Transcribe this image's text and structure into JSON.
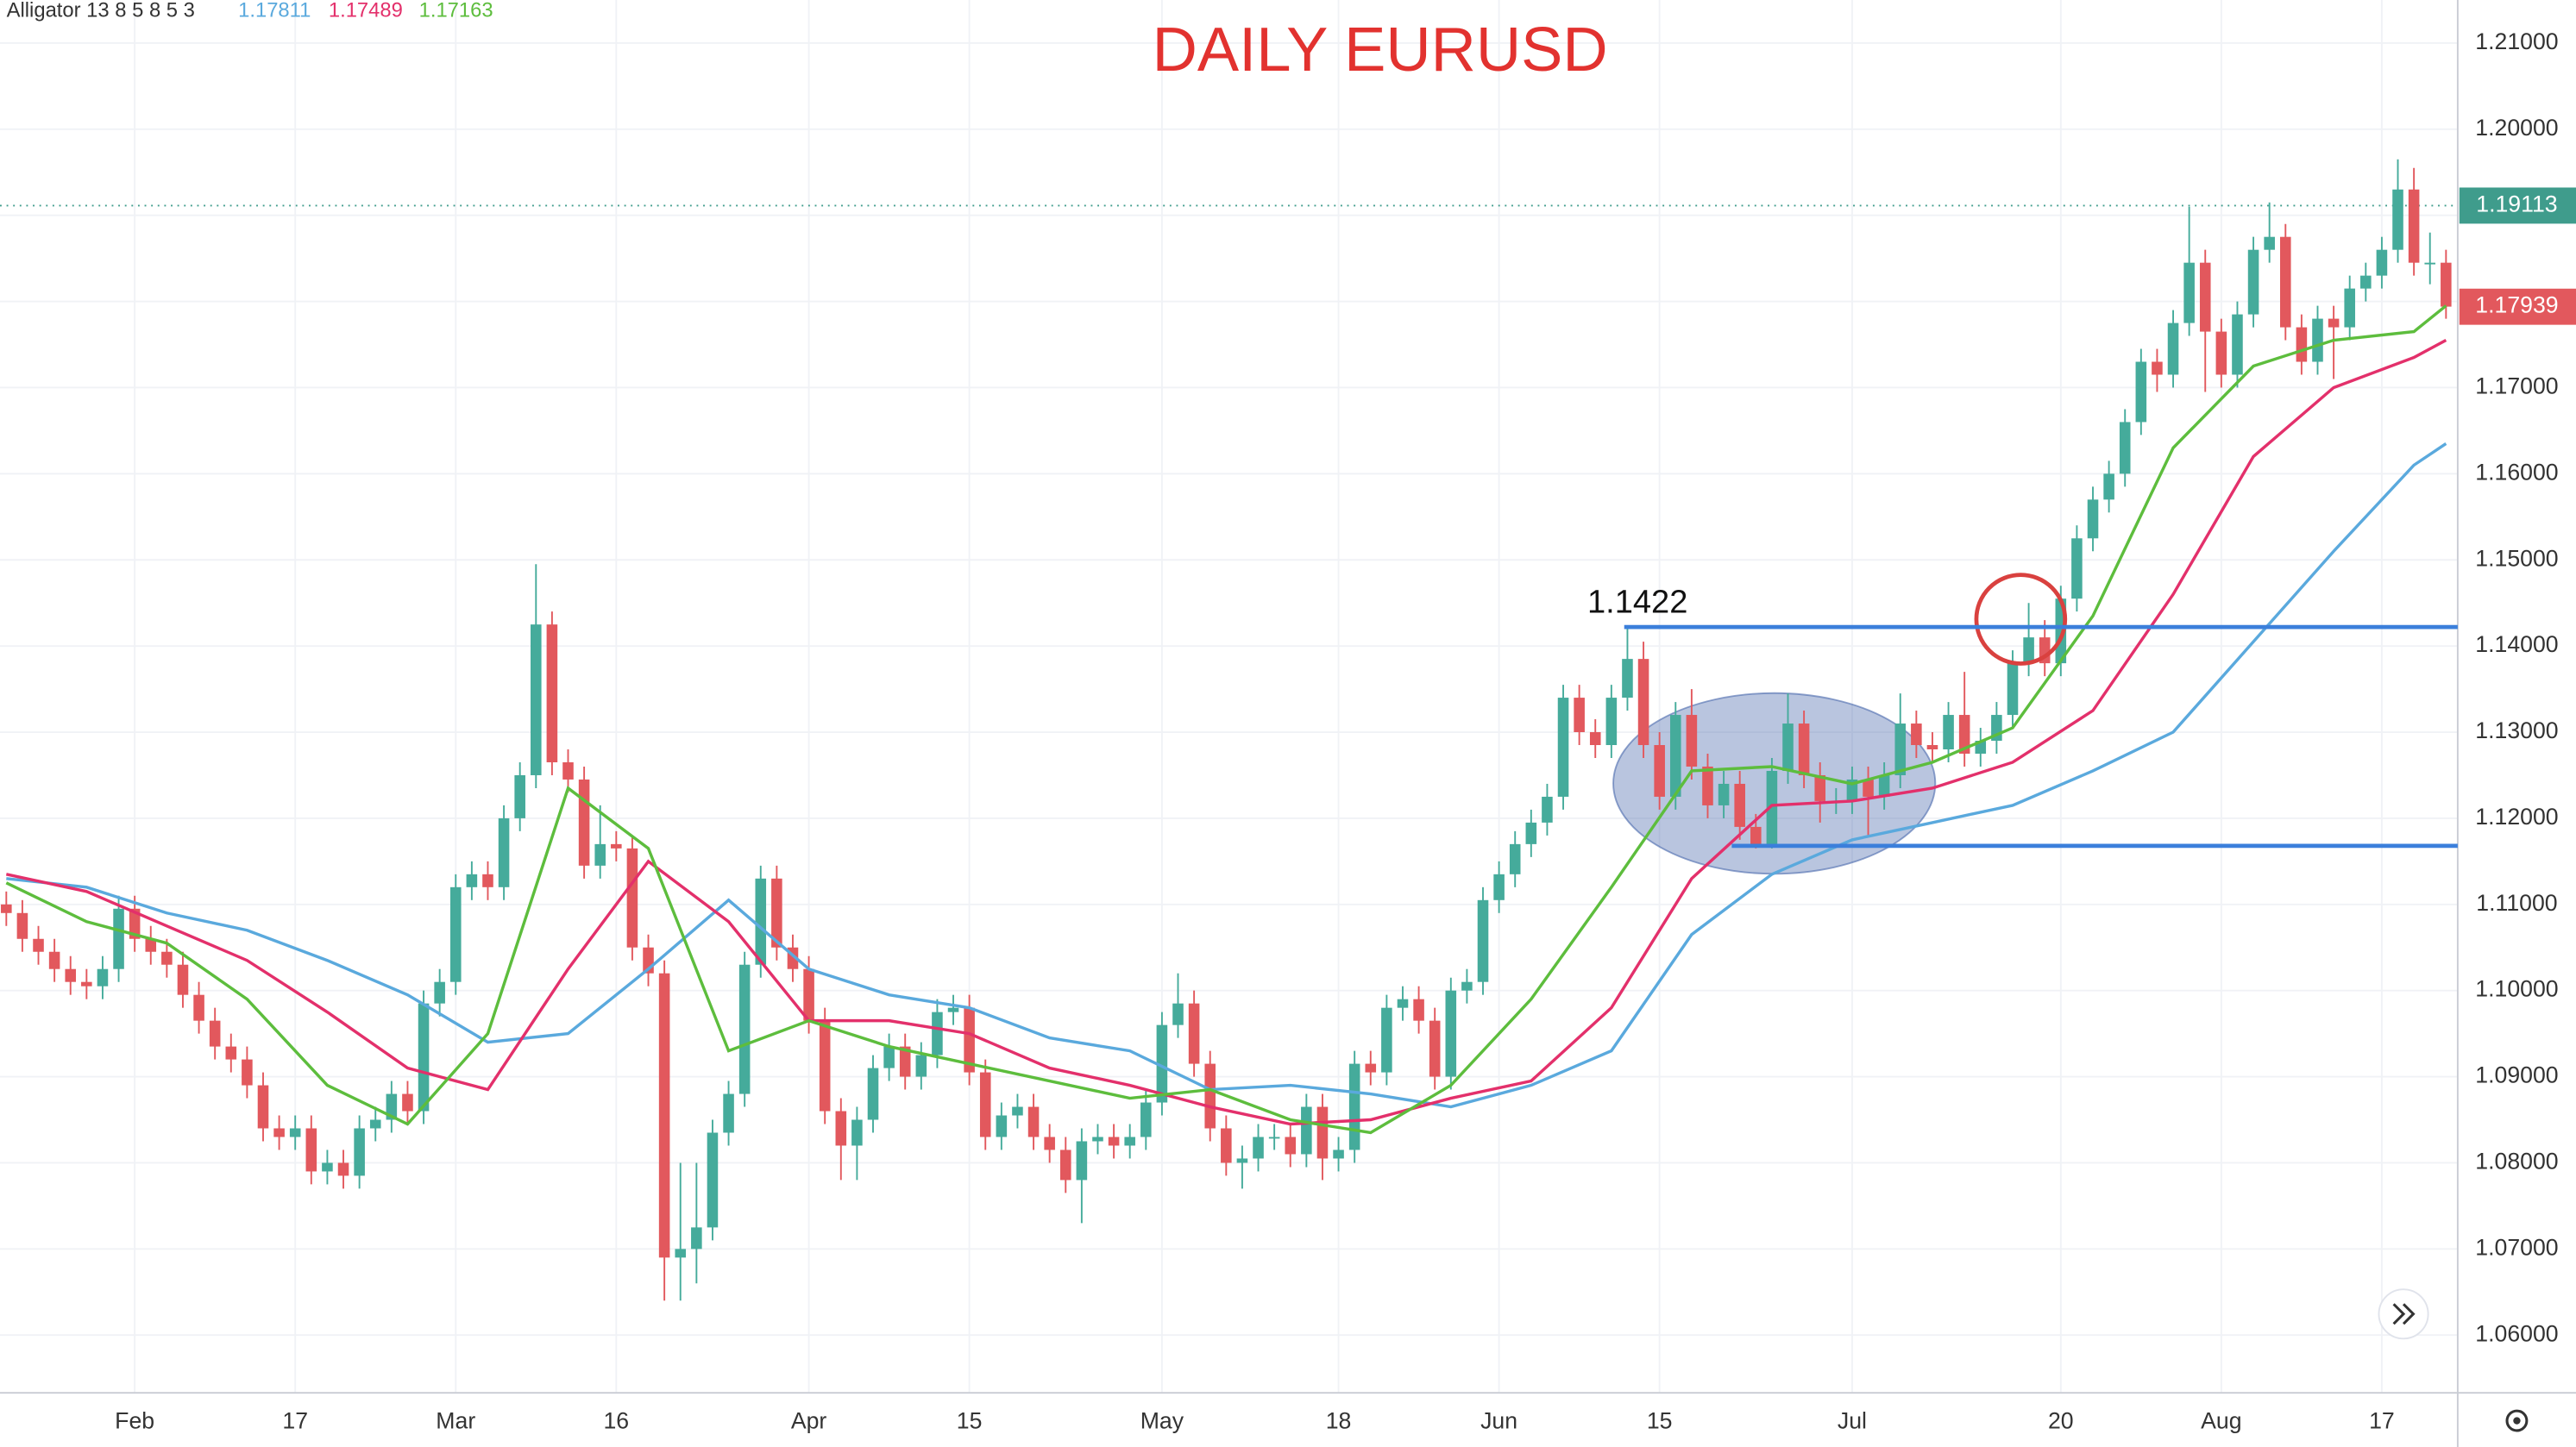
{
  "chart_data": {
    "type": "candlestick",
    "title": "DAILY EURUSD",
    "categories": [
      null,
      null,
      null,
      null,
      null,
      null,
      null,
      null,
      "Feb",
      null,
      null,
      null,
      null,
      null,
      null,
      null,
      null,
      null,
      "17",
      null,
      null,
      null,
      null,
      null,
      null,
      null,
      null,
      null,
      "Mar",
      null,
      null,
      null,
      null,
      null,
      null,
      null,
      null,
      null,
      "16",
      null,
      null,
      null,
      null,
      null,
      null,
      null,
      null,
      null,
      null,
      null,
      "Apr",
      null,
      null,
      null,
      null,
      null,
      null,
      null,
      null,
      null,
      "15",
      null,
      null,
      null,
      null,
      null,
      null,
      null,
      null,
      null,
      null,
      null,
      "May",
      null,
      null,
      null,
      null,
      null,
      null,
      null,
      null,
      null,
      null,
      "18",
      null,
      null,
      null,
      null,
      null,
      null,
      null,
      null,
      null,
      "Jun",
      null,
      null,
      null,
      null,
      null,
      null,
      null,
      null,
      null,
      "15",
      null,
      null,
      null,
      null,
      null,
      null,
      null,
      null,
      null,
      null,
      null,
      "Jul",
      null,
      null,
      null,
      null,
      null,
      null,
      null,
      null,
      null,
      null,
      null,
      null,
      "20",
      null,
      null,
      null,
      null,
      null,
      null,
      null,
      null,
      null,
      "Aug",
      null,
      null,
      null,
      null,
      null,
      null,
      null,
      null,
      null,
      "17",
      null,
      null,
      null,
      null
    ],
    "open": [
      1.11,
      1.109,
      1.106,
      1.1045,
      1.1025,
      1.101,
      1.1005,
      1.1025,
      1.1095,
      1.106,
      1.1045,
      1.103,
      1.0995,
      1.0965,
      1.0935,
      1.092,
      1.089,
      1.084,
      1.083,
      1.084,
      1.079,
      1.08,
      1.0785,
      1.084,
      1.085,
      1.088,
      1.086,
      1.0985,
      1.101,
      1.112,
      1.1135,
      1.112,
      1.12,
      1.125,
      1.1425,
      1.1265,
      1.1245,
      1.1145,
      1.117,
      1.1165,
      1.105,
      1.102,
      1.069,
      1.07,
      1.0725,
      1.0835,
      1.088,
      1.103,
      1.113,
      1.105,
      1.1025,
      1.0965,
      1.086,
      1.082,
      1.085,
      1.091,
      1.0935,
      1.09,
      1.0925,
      1.0975,
      1.098,
      1.0905,
      1.083,
      1.0855,
      1.0865,
      1.083,
      1.0815,
      1.078,
      1.0825,
      1.083,
      1.082,
      1.083,
      1.087,
      1.096,
      1.0985,
      1.0915,
      1.084,
      1.08,
      1.0805,
      1.083,
      1.083,
      1.081,
      1.0865,
      1.0805,
      1.0815,
      1.0915,
      1.0905,
      1.098,
      1.099,
      1.0965,
      1.09,
      1.1,
      1.101,
      1.1105,
      1.1135,
      1.117,
      1.1195,
      1.1225,
      1.134,
      1.13,
      1.1285,
      1.134,
      1.1385,
      1.1285,
      1.1225,
      1.132,
      1.126,
      1.1215,
      1.124,
      1.119,
      1.117,
      1.1255,
      1.131,
      1.125,
      1.122,
      1.122,
      1.1245,
      1.1225,
      1.125,
      1.131,
      1.1285,
      1.128,
      1.132,
      1.1275,
      1.129,
      1.132,
      1.138,
      1.141,
      1.138,
      1.1455,
      1.1525,
      1.157,
      1.16,
      1.166,
      1.173,
      1.1715,
      1.1775,
      1.1845,
      1.1765,
      1.1715,
      1.1785,
      1.186,
      1.1875,
      1.177,
      1.173,
      1.178,
      1.177,
      1.1815,
      1.183,
      1.186,
      1.193,
      1.1845,
      1.1845
    ],
    "high": [
      1.1115,
      1.1105,
      1.1075,
      1.106,
      1.104,
      1.1025,
      1.104,
      1.111,
      1.111,
      1.1075,
      1.106,
      1.1045,
      1.101,
      1.098,
      1.095,
      1.0935,
      1.0905,
      1.0855,
      1.0855,
      1.0855,
      1.0815,
      1.0815,
      1.0855,
      1.0865,
      1.0895,
      1.0895,
      1.1,
      1.1025,
      1.1135,
      1.115,
      1.115,
      1.1215,
      1.1265,
      1.1495,
      1.144,
      1.128,
      1.126,
      1.1215,
      1.1185,
      1.118,
      1.1065,
      1.1035,
      1.08,
      1.08,
      1.085,
      1.0895,
      1.1045,
      1.1145,
      1.1145,
      1.1065,
      1.104,
      1.098,
      1.0875,
      1.0865,
      1.0925,
      1.095,
      1.095,
      1.094,
      1.099,
      1.0995,
      1.0995,
      1.092,
      1.087,
      1.088,
      1.088,
      1.0845,
      1.083,
      1.084,
      1.0845,
      1.0845,
      1.0845,
      1.0885,
      1.0975,
      1.102,
      1.1,
      1.093,
      1.0855,
      1.082,
      1.0845,
      1.0845,
      1.0845,
      1.088,
      1.088,
      1.083,
      1.093,
      1.093,
      1.0995,
      1.1005,
      1.1005,
      1.098,
      1.1015,
      1.1025,
      1.112,
      1.115,
      1.1185,
      1.121,
      1.124,
      1.1355,
      1.1355,
      1.1315,
      1.1355,
      1.1422,
      1.1405,
      1.13,
      1.1335,
      1.135,
      1.1275,
      1.1255,
      1.1255,
      1.1205,
      1.127,
      1.1345,
      1.1325,
      1.1265,
      1.1235,
      1.126,
      1.126,
      1.1265,
      1.1345,
      1.1325,
      1.13,
      1.1335,
      1.137,
      1.1305,
      1.1335,
      1.1395,
      1.145,
      1.143,
      1.147,
      1.154,
      1.1585,
      1.1615,
      1.1675,
      1.1745,
      1.1745,
      1.179,
      1.191,
      1.186,
      1.178,
      1.18,
      1.1875,
      1.1915,
      1.189,
      1.1785,
      1.1795,
      1.1795,
      1.183,
      1.1845,
      1.1875,
      1.1965,
      1.1955,
      1.188,
      1.186
    ],
    "low": [
      1.1075,
      1.1045,
      1.103,
      1.101,
      1.0995,
      1.099,
      1.099,
      1.101,
      1.1045,
      1.103,
      1.1015,
      1.098,
      1.095,
      1.092,
      1.0905,
      1.0875,
      1.0825,
      1.0815,
      1.0815,
      1.0775,
      1.0775,
      1.077,
      1.077,
      1.0825,
      1.0835,
      1.0845,
      1.0845,
      1.097,
      1.0995,
      1.1105,
      1.1105,
      1.1105,
      1.1185,
      1.1235,
      1.125,
      1.123,
      1.113,
      1.113,
      1.115,
      1.1035,
      1.1005,
      1.064,
      1.064,
      1.066,
      1.071,
      1.082,
      1.0865,
      1.1015,
      1.1035,
      1.101,
      1.095,
      1.0845,
      1.078,
      1.078,
      1.0835,
      1.0895,
      1.0885,
      1.0885,
      1.091,
      1.096,
      1.089,
      1.0815,
      1.0815,
      1.084,
      1.0815,
      1.08,
      1.0765,
      1.073,
      1.081,
      1.0805,
      1.0805,
      1.0815,
      1.0855,
      1.0945,
      1.09,
      1.0825,
      1.0785,
      1.077,
      1.079,
      1.0815,
      1.0795,
      1.0795,
      1.078,
      1.079,
      1.08,
      1.089,
      1.089,
      1.0965,
      1.095,
      1.0885,
      1.0885,
      1.0985,
      1.0995,
      1.109,
      1.112,
      1.1155,
      1.118,
      1.121,
      1.1285,
      1.127,
      1.127,
      1.1325,
      1.127,
      1.121,
      1.121,
      1.1245,
      1.12,
      1.12,
      1.1175,
      1.1165,
      1.1165,
      1.124,
      1.1235,
      1.1195,
      1.1205,
      1.1205,
      1.118,
      1.121,
      1.1235,
      1.127,
      1.1265,
      1.1265,
      1.126,
      1.126,
      1.1275,
      1.1305,
      1.1365,
      1.1365,
      1.1365,
      1.144,
      1.151,
      1.1555,
      1.1585,
      1.1645,
      1.1695,
      1.17,
      1.176,
      1.1695,
      1.17,
      1.17,
      1.177,
      1.1845,
      1.1755,
      1.1715,
      1.1715,
      1.171,
      1.1755,
      1.18,
      1.1815,
      1.1845,
      1.183,
      1.182,
      1.178
    ],
    "close": [
      1.109,
      1.106,
      1.1045,
      1.1025,
      1.101,
      1.1005,
      1.1025,
      1.1095,
      1.106,
      1.1045,
      1.103,
      1.0995,
      1.0965,
      1.0935,
      1.092,
      1.089,
      1.084,
      1.083,
      1.084,
      1.079,
      1.08,
      1.0785,
      1.084,
      1.085,
      1.088,
      1.086,
      1.0985,
      1.101,
      1.112,
      1.1135,
      1.112,
      1.12,
      1.125,
      1.1425,
      1.1265,
      1.1245,
      1.1145,
      1.117,
      1.1165,
      1.105,
      1.102,
      1.069,
      1.07,
      1.0725,
      1.0835,
      1.088,
      1.103,
      1.113,
      1.105,
      1.1025,
      1.0965,
      1.086,
      1.082,
      1.085,
      1.091,
      1.0935,
      1.09,
      1.0925,
      1.0975,
      1.098,
      1.0905,
      1.083,
      1.0855,
      1.0865,
      1.083,
      1.0815,
      1.078,
      1.0825,
      1.083,
      1.082,
      1.083,
      1.087,
      1.096,
      1.0985,
      1.0915,
      1.084,
      1.08,
      1.0805,
      1.083,
      1.083,
      1.081,
      1.0865,
      1.0805,
      1.0815,
      1.0915,
      1.0905,
      1.098,
      1.099,
      1.0965,
      1.09,
      1.1,
      1.101,
      1.1105,
      1.1135,
      1.117,
      1.1195,
      1.1225,
      1.134,
      1.13,
      1.1285,
      1.134,
      1.1385,
      1.1285,
      1.1225,
      1.132,
      1.126,
      1.1215,
      1.124,
      1.119,
      1.117,
      1.1255,
      1.131,
      1.125,
      1.122,
      1.122,
      1.1245,
      1.1225,
      1.125,
      1.131,
      1.1285,
      1.128,
      1.132,
      1.1275,
      1.129,
      1.132,
      1.138,
      1.141,
      1.138,
      1.1455,
      1.1525,
      1.157,
      1.16,
      1.166,
      1.173,
      1.1715,
      1.1775,
      1.1845,
      1.1765,
      1.1715,
      1.1785,
      1.186,
      1.1875,
      1.177,
      1.173,
      1.178,
      1.177,
      1.1815,
      1.183,
      1.186,
      1.193,
      1.1845,
      1.1845,
      1.1794
    ],
    "up_color": "#45ab9b",
    "down_color": "#e2585d",
    "ylim": [
      1.0533,
      1.215
    ],
    "yticks": [
      {
        "value": 1.06,
        "label": "1.06000"
      },
      {
        "value": 1.07,
        "label": "1.07000"
      },
      {
        "value": 1.08,
        "label": "1.08000"
      },
      {
        "value": 1.09,
        "label": "1.09000"
      },
      {
        "value": 1.1,
        "label": "1.10000"
      },
      {
        "value": 1.11,
        "label": "1.11000"
      },
      {
        "value": 1.12,
        "label": "1.12000"
      },
      {
        "value": 1.13,
        "label": "1.13000"
      },
      {
        "value": 1.14,
        "label": "1.14000"
      },
      {
        "value": 1.15,
        "label": "1.15000"
      },
      {
        "value": 1.16,
        "label": "1.16000"
      },
      {
        "value": 1.17,
        "label": "1.17000"
      },
      {
        "value": 1.18,
        "label": "1.18000"
      },
      {
        "value": 1.19,
        "label": "1.19000"
      },
      {
        "value": 1.2,
        "label": "1.20000"
      },
      {
        "value": 1.21,
        "label": "1.21000"
      }
    ],
    "grid": true,
    "indicator": {
      "name": "Alligator 13 8 5 8 5 3",
      "lines": [
        {
          "current": 1.17811,
          "color": "#5aa9dd",
          "x": [
            0,
            5,
            10,
            15,
            20,
            25,
            30,
            35,
            40,
            45,
            50,
            55,
            60,
            65,
            70,
            75,
            80,
            85,
            90,
            95,
            100,
            105,
            110,
            115,
            120,
            125,
            130,
            135,
            140,
            145,
            150,
            152
          ],
          "values": [
            1.113,
            1.112,
            1.109,
            1.107,
            1.1035,
            1.0995,
            1.094,
            1.095,
            1.1025,
            1.1105,
            1.1025,
            1.0995,
            1.098,
            1.0945,
            1.093,
            1.0885,
            1.089,
            1.088,
            1.0865,
            1.089,
            1.093,
            1.1065,
            1.1135,
            1.1175,
            1.1195,
            1.1215,
            1.1255,
            1.13,
            1.1405,
            1.151,
            1.161,
            1.1635
          ]
        },
        {
          "current": 1.17489,
          "color": "#e3306b",
          "x": [
            0,
            5,
            10,
            15,
            20,
            25,
            30,
            35,
            40,
            45,
            50,
            55,
            60,
            65,
            70,
            75,
            80,
            85,
            90,
            95,
            100,
            105,
            110,
            115,
            120,
            125,
            130,
            135,
            140,
            145,
            150,
            152
          ],
          "values": [
            1.1135,
            1.1115,
            1.1075,
            1.1035,
            1.0975,
            1.091,
            1.0885,
            1.1025,
            1.115,
            1.108,
            1.0965,
            1.0965,
            1.095,
            1.091,
            1.089,
            1.0865,
            1.0845,
            1.085,
            1.0875,
            1.0895,
            1.098,
            1.113,
            1.1215,
            1.122,
            1.1235,
            1.1265,
            1.1325,
            1.146,
            1.162,
            1.17,
            1.1735,
            1.1755
          ]
        },
        {
          "current": 1.17163,
          "color": "#5dbd3d",
          "x": [
            0,
            5,
            10,
            15,
            20,
            25,
            30,
            35,
            40,
            45,
            50,
            55,
            60,
            65,
            70,
            75,
            80,
            85,
            90,
            95,
            100,
            105,
            110,
            115,
            120,
            125,
            130,
            135,
            140,
            145,
            150,
            152
          ],
          "values": [
            1.1125,
            1.108,
            1.1055,
            1.099,
            1.089,
            1.0845,
            1.095,
            1.1235,
            1.1165,
            1.093,
            1.0965,
            1.0935,
            1.0915,
            1.0895,
            1.0875,
            1.0885,
            1.085,
            1.0835,
            1.089,
            1.099,
            1.112,
            1.1255,
            1.126,
            1.124,
            1.1265,
            1.1305,
            1.1435,
            1.163,
            1.1725,
            1.1755,
            1.1765,
            1.1795
          ]
        }
      ]
    },
    "resistance_level": 1.1422,
    "support_level": 1.1168,
    "marker_price": 1.19113,
    "last_price": 1.17939
  }
}
